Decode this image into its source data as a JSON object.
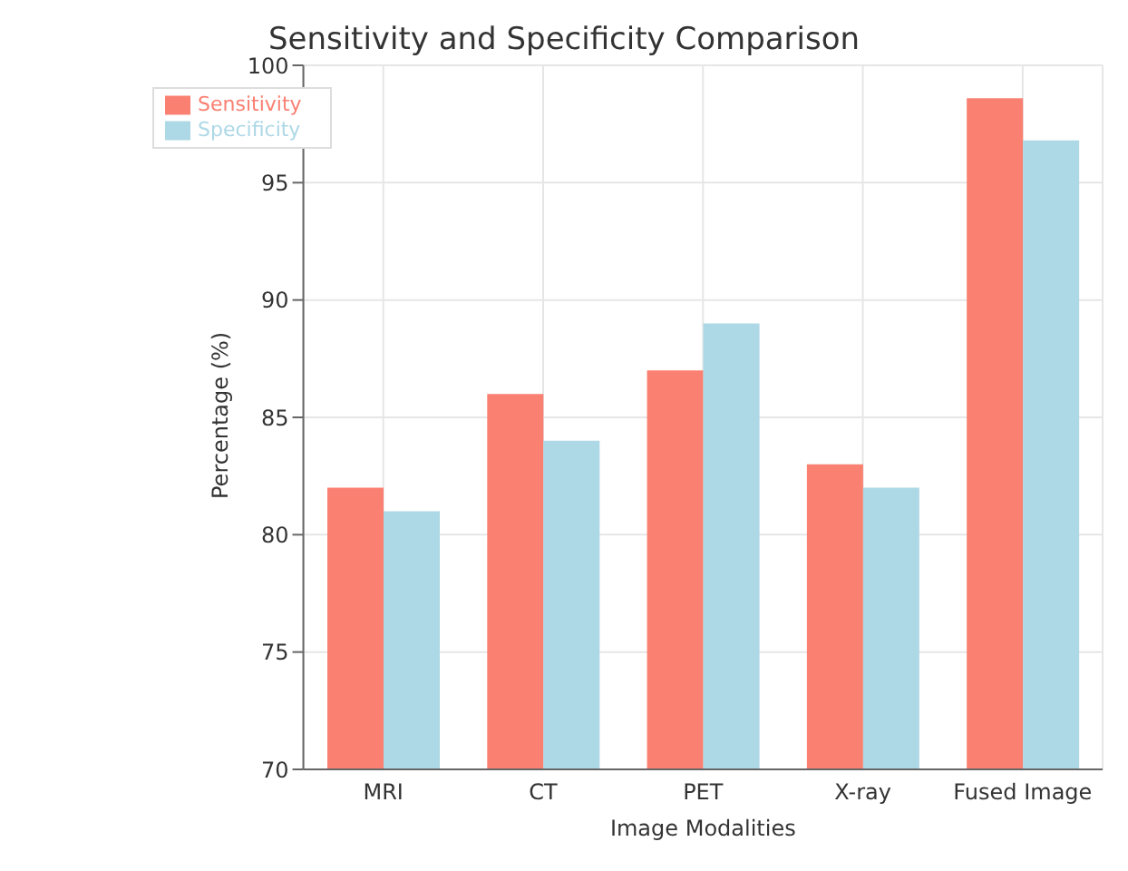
{
  "chart_data": {
    "type": "bar",
    "title": "Sensitivity and Specificity Comparison",
    "xlabel": "Image Modalities",
    "ylabel": "Percentage (%)",
    "categories": [
      "MRI",
      "CT",
      "PET",
      "X-ray",
      "Fused Image"
    ],
    "series": [
      {
        "name": "Sensitivity",
        "color": "#fa8072",
        "values": [
          82,
          86,
          87,
          83,
          98.6
        ]
      },
      {
        "name": "Specificity",
        "color": "#add8e6",
        "values": [
          81,
          84,
          89,
          82,
          96.8
        ]
      }
    ],
    "ylim": [
      70,
      100
    ],
    "yticks": [
      70,
      75,
      80,
      85,
      90,
      95,
      100
    ],
    "grid": true,
    "legend": "top left"
  }
}
